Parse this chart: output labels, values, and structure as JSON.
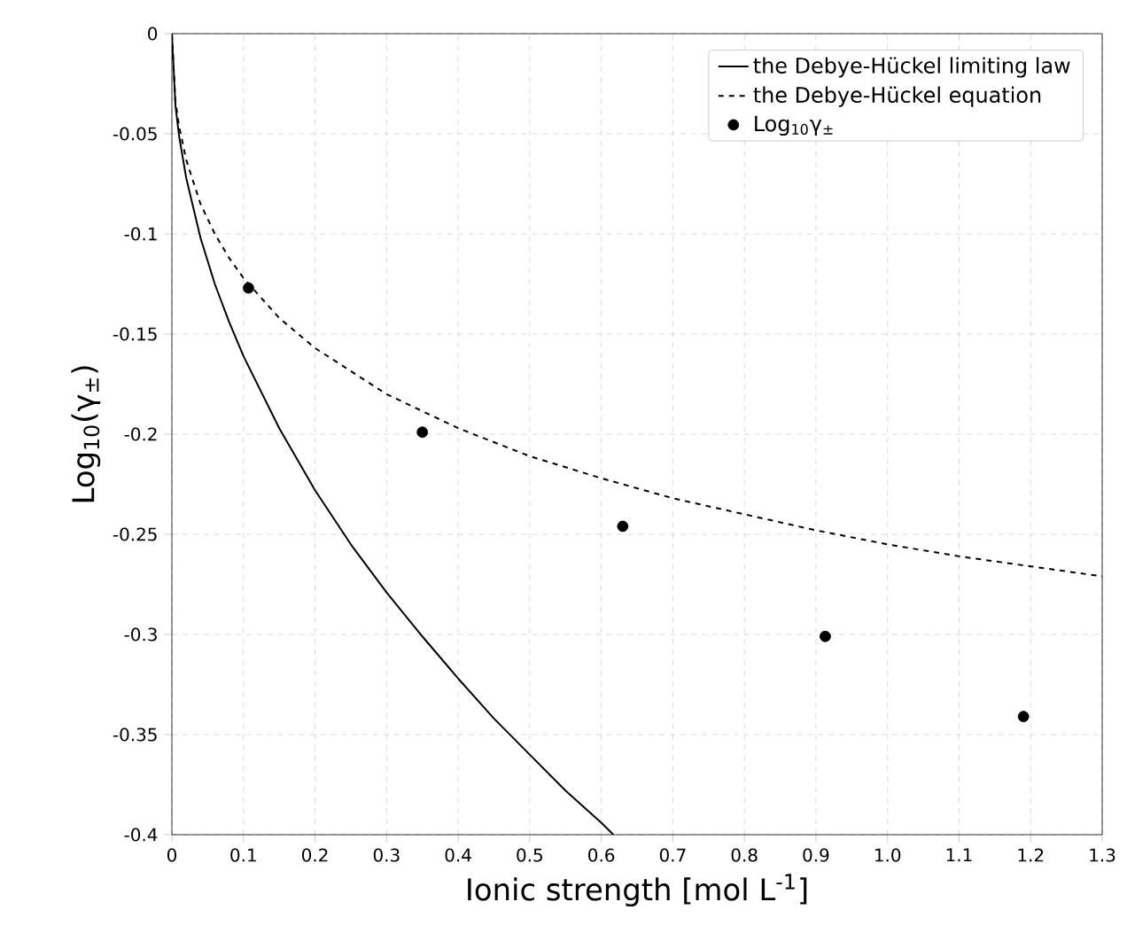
{
  "chart_data": {
    "type": "line",
    "xlabel": "Ionic strength [mol L$^{-1}$]",
    "ylabel": "Log$_{10}$(γ$_{±}$)",
    "xlim": [
      0,
      1.3
    ],
    "ylim": [
      -0.4,
      0
    ],
    "xticks": [
      0,
      0.1,
      0.2,
      0.3,
      0.4,
      0.5,
      0.6,
      0.7,
      0.8,
      0.9,
      {
        "value": 1,
        "label": "1.0"
      },
      1.1,
      1.2,
      1.3
    ],
    "yticks": [
      -0.4,
      -0.35,
      -0.3,
      -0.25,
      -0.2,
      -0.15,
      -0.1,
      -0.05,
      0
    ],
    "grid": true,
    "legend": "top right",
    "series": [
      {
        "name": "the Debye-Hückel limiting law",
        "color": "#000000",
        "line_style": "solid",
        "marker": "none",
        "x": [
          0,
          0.005,
          0.01,
          0.02,
          0.04,
          0.06,
          0.08,
          0.1,
          0.15,
          0.2,
          0.25,
          0.3,
          0.35,
          0.4,
          0.45,
          0.5,
          0.55,
          0.6,
          0.617
        ],
        "values": [
          0,
          -0.036,
          -0.051,
          -0.072,
          -0.102,
          -0.125,
          -0.144,
          -0.161,
          -0.197,
          -0.228,
          -0.255,
          -0.279,
          -0.301,
          -0.322,
          -0.342,
          -0.36,
          -0.378,
          -0.394,
          -0.4
        ]
      },
      {
        "name": "the Debye-Hückel equation",
        "color": "#000000",
        "line_style": "dashed",
        "marker": "none",
        "x": [
          0,
          0.005,
          0.01,
          0.02,
          0.04,
          0.06,
          0.08,
          0.1,
          0.15,
          0.2,
          0.3,
          0.4,
          0.5,
          0.6,
          0.7,
          0.8,
          0.9,
          1.0,
          1.1,
          1.2,
          1.3
        ],
        "values": [
          0,
          -0.034,
          -0.046,
          -0.063,
          -0.085,
          -0.1,
          -0.112,
          -0.122,
          -0.142,
          -0.157,
          -0.18,
          -0.197,
          -0.211,
          -0.222,
          -0.232,
          -0.24,
          -0.248,
          -0.255,
          -0.261,
          -0.266,
          -0.271
        ]
      },
      {
        "name": "Log$_{10}$γ$_{±}$",
        "type": "scatter",
        "color": "#000000",
        "marker": "circle",
        "x": [
          0.107,
          0.35,
          0.63,
          0.913,
          1.19
        ],
        "values": [
          -0.127,
          -0.199,
          -0.246,
          -0.301,
          -0.341
        ]
      }
    ]
  }
}
